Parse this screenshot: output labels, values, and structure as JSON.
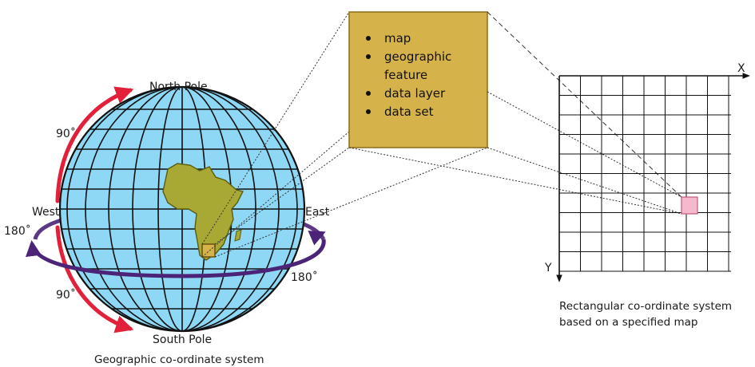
{
  "globe": {
    "north_pole": "North Pole",
    "south_pole": "South Pole",
    "west": "West",
    "east": "East",
    "deg_90_top": "90˚",
    "deg_90_bottom": "90˚",
    "deg_180_left": "180˚",
    "deg_180_right": "180˚",
    "caption": "Geographic co-ordinate system"
  },
  "box": {
    "items": [
      {
        "lines": [
          "map"
        ]
      },
      {
        "lines": [
          "geographic",
          "feature"
        ]
      },
      {
        "lines": [
          "data layer"
        ]
      },
      {
        "lines": [
          "data set"
        ]
      }
    ]
  },
  "grid": {
    "x_label": "X",
    "y_label": "Y",
    "caption_line1": "Rectangular co-ordinate system",
    "caption_line2": "based on a specified map"
  },
  "colors": {
    "ocean": "#8fd8f5",
    "land": "#a8a834",
    "box_fill": "#d5b34a",
    "box_stroke": "#8a6d1a",
    "red_arrow": "#e3203a",
    "purple_arrow": "#4b2478",
    "highlight": "#f5b8cc"
  }
}
